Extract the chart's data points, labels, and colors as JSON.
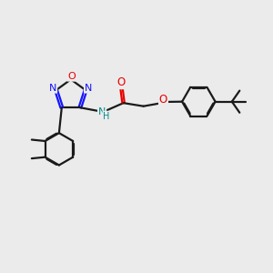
{
  "bg_color": "#ebebeb",
  "bond_color": "#1a1a1a",
  "N_color": "#1414ff",
  "O_color": "#e80000",
  "NH_color": "#008b8b",
  "lw": 1.6,
  "dbo": 0.055,
  "figsize": [
    3.0,
    3.0
  ],
  "dpi": 100,
  "xlim": [
    0,
    10
  ],
  "ylim": [
    0,
    10
  ]
}
